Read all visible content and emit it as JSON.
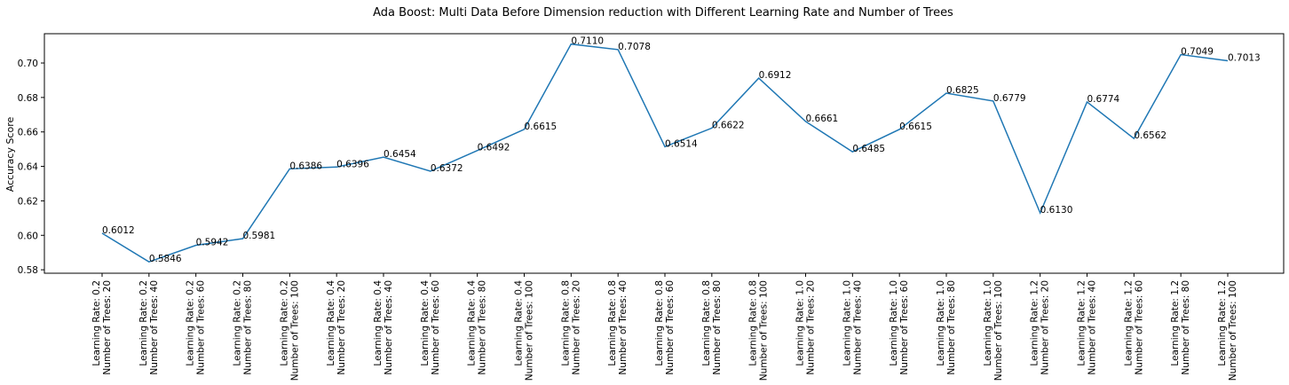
{
  "chart_data": {
    "type": "line",
    "title": "Ada Boost: Multi Data Before Dimension reduction with Different Learning Rate and Number of Trees",
    "xlabel": "",
    "ylabel": "Accuracy Score",
    "ylim": [
      0.578,
      0.717
    ],
    "yticks": [
      "0.58",
      "0.60",
      "0.62",
      "0.64",
      "0.66",
      "0.68",
      "0.70"
    ],
    "grid": false,
    "color": "#1f77b4",
    "categories": [
      [
        "Learning Rate: 0.2",
        "Number of Trees: 20"
      ],
      [
        "Learning Rate: 0.2",
        "Number of Trees: 40"
      ],
      [
        "Learning Rate: 0.2",
        "Number of Trees: 60"
      ],
      [
        "Learning Rate: 0.2",
        "Number of Trees: 80"
      ],
      [
        "Learning Rate: 0.2",
        "Number of Trees: 100"
      ],
      [
        "Learning Rate: 0.4",
        "Number of Trees: 20"
      ],
      [
        "Learning Rate: 0.4",
        "Number of Trees: 40"
      ],
      [
        "Learning Rate: 0.4",
        "Number of Trees: 60"
      ],
      [
        "Learning Rate: 0.4",
        "Number of Trees: 80"
      ],
      [
        "Learning Rate: 0.4",
        "Number of Trees: 100"
      ],
      [
        "Learning Rate: 0.8",
        "Number of Trees: 20"
      ],
      [
        "Learning Rate: 0.8",
        "Number of Trees: 40"
      ],
      [
        "Learning Rate: 0.8",
        "Number of Trees: 60"
      ],
      [
        "Learning Rate: 0.8",
        "Number of Trees: 80"
      ],
      [
        "Learning Rate: 0.8",
        "Number of Trees: 100"
      ],
      [
        "Learning Rate: 1.0",
        "Number of Trees: 20"
      ],
      [
        "Learning Rate: 1.0",
        "Number of Trees: 40"
      ],
      [
        "Learning Rate: 1.0",
        "Number of Trees: 60"
      ],
      [
        "Learning Rate: 1.0",
        "Number of Trees: 80"
      ],
      [
        "Learning Rate: 1.0",
        "Number of Trees: 100"
      ],
      [
        "Learning Rate: 1.2",
        "Number of Trees: 20"
      ],
      [
        "Learning Rate: 1.2",
        "Number of Trees: 40"
      ],
      [
        "Learning Rate: 1.2",
        "Number of Trees: 60"
      ],
      [
        "Learning Rate: 1.2",
        "Number of Trees: 80"
      ],
      [
        "Learning Rate: 1.2",
        "Number of Trees: 100"
      ]
    ],
    "values": [
      0.6012,
      0.5846,
      0.5942,
      0.5981,
      0.6386,
      0.6396,
      0.6454,
      0.6372,
      0.6492,
      0.6615,
      0.711,
      0.7078,
      0.6514,
      0.6622,
      0.6912,
      0.6661,
      0.6485,
      0.6615,
      0.6825,
      0.6779,
      0.613,
      0.6774,
      0.6562,
      0.7049,
      0.7013
    ],
    "data_labels": [
      "0.6012",
      "0.5846",
      "0.5942",
      "0.5981",
      "0.6386",
      "0.6396",
      "0.6454",
      "0.6372",
      "0.6492",
      "0.6615",
      "0.7110",
      "0.7078",
      "0.6514",
      "0.6622",
      "0.6912",
      "0.6661",
      "0.6485",
      "0.6615",
      "0.6825",
      "0.6779",
      "0.6130",
      "0.6774",
      "0.6562",
      "0.7049",
      "0.7013"
    ]
  }
}
